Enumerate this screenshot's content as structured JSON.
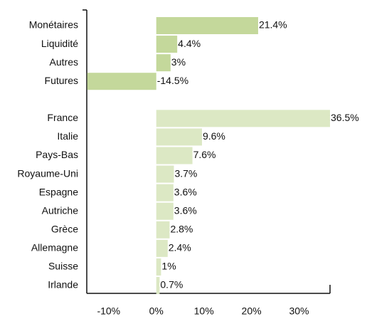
{
  "chart_data": {
    "type": "bar",
    "orientation": "horizontal",
    "categories": [
      "Monétaires",
      "Liquidité",
      "Autres",
      "Futures",
      null,
      "France",
      "Italie",
      "Pays-Bas",
      "Royaume-Uni",
      "Espagne",
      "Autriche",
      "Grèce",
      "Allemagne",
      "Suisse",
      "Irlande"
    ],
    "series": [
      {
        "color": "#c4d89b",
        "values": [
          21.4,
          4.4,
          3,
          -14.5,
          null,
          null,
          null,
          null,
          null,
          null,
          null,
          null,
          null,
          null,
          null
        ],
        "value_labels": [
          "21.4%",
          "4.4%",
          "3%",
          "-14.5%",
          null,
          null,
          null,
          null,
          null,
          null,
          null,
          null,
          null,
          null,
          null
        ]
      },
      {
        "color": "#dce8c4",
        "values": [
          null,
          null,
          null,
          null,
          null,
          36.5,
          9.6,
          7.6,
          3.7,
          3.6,
          3.6,
          2.8,
          2.4,
          1,
          0.7
        ],
        "value_labels": [
          null,
          null,
          null,
          null,
          null,
          "36.5%",
          "9.6%",
          "7.6%",
          "3.7%",
          "3.6%",
          "3.6%",
          "2.8%",
          "2.4%",
          "1%",
          "0.7%"
        ]
      }
    ],
    "xlim": [
      -14.6,
      36.5
    ],
    "xticks": [
      {
        "value": -10,
        "label": "-10%"
      },
      {
        "value": 0,
        "label": "0%"
      },
      {
        "value": 10,
        "label": "10%"
      },
      {
        "value": 20,
        "label": "20%"
      },
      {
        "value": 30,
        "label": "30%"
      }
    ]
  }
}
